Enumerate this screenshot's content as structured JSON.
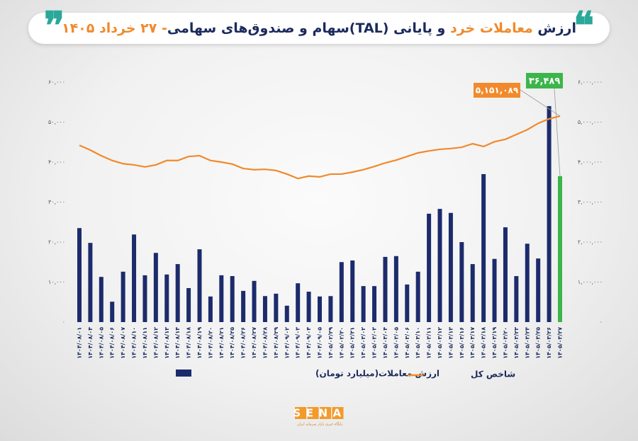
{
  "chart_data": {
    "type": "bar-line",
    "title_parts": [
      {
        "text": "ارزش ",
        "color": "#1b2a5c"
      },
      {
        "text": "معاملات خرد",
        "color": "#f08a2c"
      },
      {
        "text": " و پایانی (TAL)سهام و صندوق‌های سهامی",
        "color": "#1b2a5c"
      },
      {
        "text": "- ۲۷ خرداد ۱۴۰۵",
        "color": "#f08a2c"
      }
    ],
    "categories": [
      "۱۴۰۴/۰۸/۰۱",
      "۱۴۰۴/۰۸/۰۴",
      "۱۴۰۴/۰۸/۰۵",
      "۱۴۰۴/۰۸/۰۶",
      "۱۴۰۴/۰۸/۰۷",
      "۱۴۰۴/۰۸/۱۰",
      "۱۴۰۴/۰۸/۱۱",
      "۱۴۰۴/۰۸/۱۲",
      "۱۴۰۴/۰۸/۱۳",
      "۱۴۰۴/۰۸/۱۴",
      "۱۴۰۴/۰۸/۱۸",
      "۱۴۰۴/۰۸/۱۹",
      "۱۴۰۴/۰۸/۲۰",
      "۱۴۰۴/۰۸/۲۱",
      "۱۴۰۴/۰۸/۲۵",
      "۱۴۰۴/۰۸/۲۶",
      "۱۴۰۴/۰۸/۲۷",
      "۱۴۰۴/۰۸/۲۸",
      "۱۴۰۴/۰۸/۲۹",
      "۱۴۰۴/۰۹/۰۲",
      "۱۴۰۴/۰۹/۰۳",
      "۱۴۰۴/۰۹/۰۴",
      "۱۴۰۴/۰۹/۰۵",
      "۱۴۰۵/۰۲/۲۹",
      "۱۴۰۵/۰۲/۳۰",
      "۱۴۰۵/۰۲/۳۱",
      "۱۴۰۵/۰۳/۰۲",
      "۱۴۰۵/۰۳/۰۳",
      "۱۴۰۵/۰۳/۰۴",
      "۱۴۰۵/۰۳/۰۵",
      "۱۴۰۵/۰۳/۰۶",
      "۱۴۰۵/۰۳/۱۰",
      "۱۴۰۵/۰۳/۱۱",
      "۱۴۰۵/۰۳/۱۲",
      "۱۴۰۵/۰۳/۱۳",
      "۱۴۰۵/۰۳/۱۶",
      "۱۴۰۵/۰۳/۱۷",
      "۱۴۰۵/۰۳/۱۸",
      "۱۴۰۵/۰۳/۱۹",
      "۱۴۰۵/۰۳/۲۰",
      "۱۴۰۵/۰۳/۲۳",
      "۱۴۰۵/۰۳/۲۴",
      "۱۴۰۵/۰۳/۲۵",
      "۱۴۰۵/۰۳/۲۶",
      "۱۴۰۵/۰۳/۲۷"
    ],
    "series": [
      {
        "name": "ارزش معاملات(میلیارد تومان)",
        "type": "bar",
        "color": "#1c2b6b",
        "highlight": {
          "index": 44,
          "color": "#3cb54a"
        },
        "values": [
          23500,
          19800,
          11300,
          5100,
          12600,
          21900,
          11700,
          17300,
          11900,
          14500,
          8500,
          18200,
          6400,
          11700,
          11500,
          7800,
          10300,
          6500,
          7100,
          4100,
          9700,
          7600,
          6400,
          6500,
          15000,
          15400,
          9000,
          9000,
          16300,
          16500,
          9400,
          12600,
          27100,
          28300,
          27300,
          20000,
          14500,
          37000,
          15800,
          23700,
          11500,
          19600,
          15900,
          54000,
          36489
        ],
        "value_labels": [
          null,
          null,
          null,
          null,
          null,
          null,
          null,
          null,
          null,
          null,
          null,
          null,
          null,
          null,
          null,
          null,
          null,
          null,
          null,
          null,
          null,
          null,
          null,
          null,
          null,
          null,
          null,
          null,
          null,
          null,
          null,
          null,
          null,
          null,
          null,
          null,
          null,
          null,
          null,
          null,
          null,
          null,
          null,
          null,
          "۳۶,۴۸۹"
        ]
      },
      {
        "name": "شاخص کل",
        "type": "line",
        "axis": "y2",
        "color": "#f08a2c",
        "values": [
          4420000,
          4300000,
          4160000,
          4040000,
          3960000,
          3930000,
          3880000,
          3930000,
          4040000,
          4040000,
          4140000,
          4160000,
          4040000,
          4000000,
          3950000,
          3840000,
          3810000,
          3820000,
          3790000,
          3700000,
          3590000,
          3650000,
          3630000,
          3700000,
          3700000,
          3750000,
          3810000,
          3890000,
          3980000,
          4050000,
          4140000,
          4230000,
          4280000,
          4320000,
          4340000,
          4370000,
          4460000,
          4390000,
          4510000,
          4570000,
          4690000,
          4810000,
          4970000,
          5080000,
          5151089
        ],
        "value_labels": [
          null,
          null,
          null,
          null,
          null,
          null,
          null,
          null,
          null,
          null,
          null,
          null,
          null,
          null,
          null,
          null,
          null,
          null,
          null,
          null,
          null,
          null,
          null,
          null,
          null,
          null,
          null,
          null,
          null,
          null,
          null,
          null,
          null,
          null,
          null,
          null,
          null,
          null,
          null,
          null,
          null,
          null,
          null,
          null,
          "۵,۱۵۱,۰۸۹"
        ]
      }
    ],
    "ylim": [
      0,
      60000
    ],
    "yticks": [
      {
        "value": 0,
        "label": "۰"
      },
      {
        "value": 10000,
        "label": "۱۰,۰۰۰"
      },
      {
        "value": 20000,
        "label": "۲۰,۰۰۰"
      },
      {
        "value": 30000,
        "label": "۳۰,۰۰۰"
      },
      {
        "value": 40000,
        "label": "۴۰,۰۰۰"
      },
      {
        "value": 50000,
        "label": "۵۰,۰۰۰"
      },
      {
        "value": 60000,
        "label": "۶۰,۰۰۰"
      }
    ],
    "y2lim": [
      0,
      6000000
    ],
    "y2ticks": [
      {
        "value": 0,
        "label": "۰"
      },
      {
        "value": 1000000,
        "label": "۱,۰۰۰,۰۰۰"
      },
      {
        "value": 2000000,
        "label": "۲,۰۰۰,۰۰۰"
      },
      {
        "value": 3000000,
        "label": "۳,۰۰۰,۰۰۰"
      },
      {
        "value": 4000000,
        "label": "۴,۰۰۰,۰۰۰"
      },
      {
        "value": 5000000,
        "label": "۵,۰۰۰,۰۰۰"
      },
      {
        "value": 6000000,
        "label": "۶,۰۰۰,۰۰۰"
      }
    ],
    "grid": false,
    "legend": "bottom",
    "logo": "SENA",
    "logo_tagline": "پایگاه خبری بازار سرمایه ایران"
  }
}
